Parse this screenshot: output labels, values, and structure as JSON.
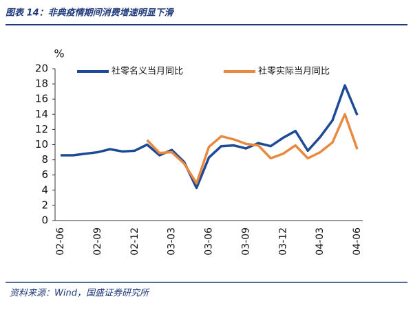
{
  "chart_data": {
    "type": "line",
    "title": "图表 14：非典疫情期间消费增速明显下滑",
    "y_label": "%",
    "source": "资料来源：Wind，国盛证券研究所",
    "categories": [
      "02-06",
      null,
      null,
      "02-09",
      null,
      null,
      "02-12",
      null,
      null,
      "03-03",
      null,
      null,
      "03-06",
      null,
      null,
      "03-09",
      null,
      null,
      "03-12",
      null,
      null,
      "04-03",
      null,
      null,
      "04-06"
    ],
    "series": [
      {
        "name": "社零名义当月同比",
        "color": "#1c4a94",
        "values": [
          8.6,
          8.6,
          8.8,
          9.0,
          9.4,
          9.1,
          9.2,
          10.0,
          8.6,
          9.3,
          7.7,
          4.3,
          8.3,
          9.8,
          9.9,
          9.5,
          10.2,
          9.8,
          10.9,
          11.8,
          9.2,
          11.0,
          13.2,
          17.8,
          13.9
        ]
      },
      {
        "name": "社零实际当月同比",
        "color": "#e8893f",
        "values": [
          null,
          null,
          null,
          null,
          null,
          null,
          null,
          10.6,
          8.9,
          9.0,
          7.5,
          4.9,
          9.7,
          11.1,
          10.7,
          10.1,
          9.9,
          8.2,
          8.8,
          9.9,
          8.2,
          9.0,
          10.3,
          14.0,
          9.4
        ]
      }
    ],
    "ylim": [
      0,
      20
    ],
    "yticks": [
      0,
      2,
      4,
      6,
      8,
      10,
      12,
      14,
      16,
      18,
      20
    ],
    "legend": "top"
  }
}
